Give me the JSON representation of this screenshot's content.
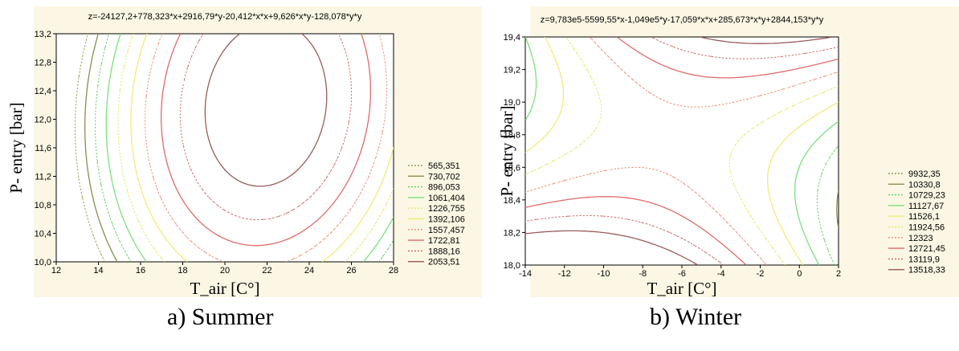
{
  "chart_data": [
    {
      "type": "contour",
      "title": "z=-24127,2+778,323*x+2916,79*y-20,412*x*x+9,626*x*y-128,078*y*y",
      "xlabel": "T_air [C°]",
      "ylabel": "P- entry [bar]",
      "caption": "a) Summer",
      "xlim": [
        12,
        28
      ],
      "ylim": [
        10.0,
        13.2
      ],
      "x_ticks": [
        "12",
        "14",
        "16",
        "18",
        "20",
        "22",
        "24",
        "26",
        "28"
      ],
      "y_ticks": [
        "10,0",
        "10,4",
        "10,8",
        "11,2",
        "11,6",
        "12,0",
        "12,4",
        "12,8",
        "13,2"
      ],
      "coefficients": {
        "c": -24127.2,
        "x": 778.323,
        "y": 2916.79,
        "xx": -20.412,
        "xy": 9.626,
        "yy": -128.078
      },
      "legend_position": "right",
      "levels": [
        {
          "label": "565,351",
          "value": 565.351,
          "color": "#9b9a5a",
          "dash": true
        },
        {
          "label": "730,702",
          "value": 730.702,
          "color": "#8c8c50",
          "dash": false
        },
        {
          "label": "896,053",
          "value": 896.053,
          "color": "#5ccf5c",
          "dash": true
        },
        {
          "label": "1061,404",
          "value": 1061.404,
          "color": "#7be07b",
          "dash": false
        },
        {
          "label": "1226,755",
          "value": 1226.755,
          "color": "#e4e866",
          "dash": true
        },
        {
          "label": "1392,106",
          "value": 1392.106,
          "color": "#f2ec7a",
          "dash": false
        },
        {
          "label": "1557,457",
          "value": 1557.457,
          "color": "#f08a78",
          "dash": true
        },
        {
          "label": "1722,81",
          "value": 1722.81,
          "color": "#e06a6a",
          "dash": false
        },
        {
          "label": "1888,16",
          "value": 1888.16,
          "color": "#c86b6b",
          "dash": true
        },
        {
          "label": "2053,51",
          "value": 2053.51,
          "color": "#9b5a5a",
          "dash": false
        }
      ]
    },
    {
      "type": "contour",
      "title": "z=9,783e5-5599,55*x-1,049e5*y-17,059*x*x+285,673*x*y+2844,153*y*y",
      "xlabel": "T_air [C°]",
      "ylabel": "P- entry [bar]",
      "caption": "b) Winter",
      "xlim": [
        -14,
        2
      ],
      "ylim": [
        18.0,
        19.4
      ],
      "x_ticks": [
        "-14",
        "-12",
        "-10",
        "-8",
        "-6",
        "-4",
        "-2",
        "0",
        "2"
      ],
      "y_ticks": [
        "18,0",
        "18,2",
        "18,4",
        "18,6",
        "18,8",
        "19,0",
        "19,2",
        "19,4"
      ],
      "coefficients": {
        "c": 978300,
        "x": -5599.55,
        "y": -104900,
        "xx": -17.059,
        "xy": 285.673,
        "yy": 2844.153
      },
      "legend_position": "right",
      "levels": [
        {
          "label": "9932,35",
          "value": 9932.35,
          "color": "#9b9a5a",
          "dash": true
        },
        {
          "label": "10330,8",
          "value": 10330.8,
          "color": "#8c8c50",
          "dash": false
        },
        {
          "label": "10729,23",
          "value": 10729.23,
          "color": "#5ccf5c",
          "dash": true
        },
        {
          "label": "11127,67",
          "value": 11127.67,
          "color": "#7be07b",
          "dash": false
        },
        {
          "label": "11526,1",
          "value": 11526.1,
          "color": "#f2ec7a",
          "dash": false
        },
        {
          "label": "11924,56",
          "value": 11924.56,
          "color": "#e4e866",
          "dash": true
        },
        {
          "label": "12323",
          "value": 12323,
          "color": "#f08a78",
          "dash": true
        },
        {
          "label": "12721,45",
          "value": 12721.45,
          "color": "#e06a6a",
          "dash": false
        },
        {
          "label": "13119,9",
          "value": 13119.9,
          "color": "#c86b6b",
          "dash": true
        },
        {
          "label": "13518,33",
          "value": 13518.33,
          "color": "#9b5a5a",
          "dash": false
        }
      ]
    }
  ]
}
